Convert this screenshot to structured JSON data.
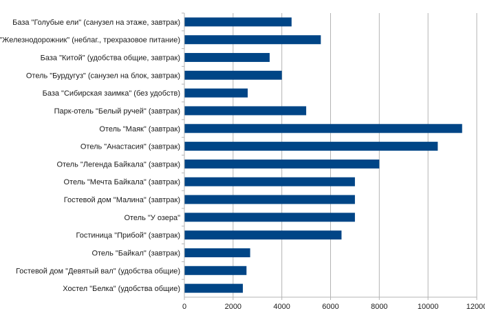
{
  "chart_data": {
    "type": "bar",
    "orientation": "horizontal",
    "categories": [
      "База \"Голубые ели\" (санузел на этаже, завтрак)",
      "\"Железнодорожник\" (неблаг., трехразовое питание)",
      "База \"Китой\" (удобства общие, завтрак)",
      "Отель \"Бурдугуз\" (санузел на блок, завтрак)",
      "База \"Сибирская заимка\" (без удобств)",
      "Парк-отель \"Белый ручей\" (завтрак)",
      "Отель \"Маяк\" (завтрак)",
      "Отель \"Анастасия\" (завтрак)",
      "Отель \"Легенда Байкала\" (завтрак)",
      "Отель \"Мечта Байкала\" (завтрак)",
      "Гостевой дом \"Малина\" (завтрак)",
      "Отель \"У озера\"",
      "Гостиница \"Прибой\" (завтрак)",
      "Отель \"Байкал\" (завтрак)",
      "Гостевой дом \"Девятый вал\" (удобства общие)",
      "Хостел \"Белка\" (удобства общие)"
    ],
    "values": [
      4400,
      5600,
      3500,
      4000,
      2600,
      5000,
      11400,
      10400,
      8000,
      7000,
      7000,
      7000,
      6450,
      2700,
      2550,
      2400
    ],
    "xlim": [
      0,
      12000
    ],
    "xticks": [
      "0",
      "2000",
      "4000",
      "6000",
      "8000",
      "10000",
      "12000"
    ],
    "grid": "vertical",
    "bar_color": "#004586",
    "title": "",
    "xlabel": "",
    "ylabel": ""
  }
}
